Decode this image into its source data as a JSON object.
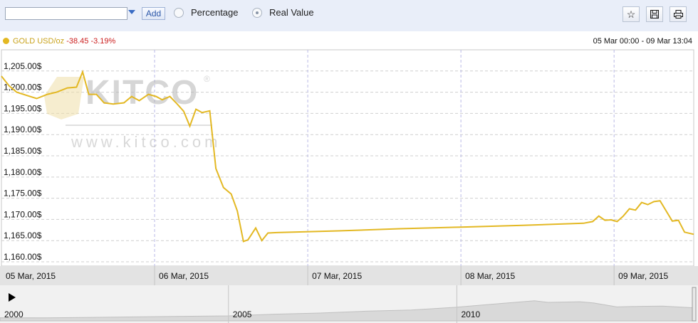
{
  "toolbar": {
    "add_label": "Add",
    "radio_percentage": "Percentage",
    "radio_real_value": "Real Value",
    "icons": [
      "star-icon",
      "save-icon",
      "print-icon"
    ]
  },
  "legend": {
    "series_name": "GOLD USD/oz",
    "change": "-38.45",
    "change_pct": "-3.19%",
    "color": "#e3b823"
  },
  "date_range": "05 Mar 00:00 - 09 Mar 13:04",
  "watermark": {
    "logo": "KITCO",
    "url": "www.kitco.com"
  },
  "chart_data": {
    "type": "line",
    "series": [
      {
        "name": "GOLD USD/oz",
        "color": "#e3b823",
        "points": [
          [
            0.0,
            1203.8
          ],
          [
            0.05,
            1201.5
          ],
          [
            0.1,
            1200.0
          ],
          [
            0.17,
            1199.2
          ],
          [
            0.23,
            1198.5
          ],
          [
            0.3,
            1199.5
          ],
          [
            0.36,
            1200.0
          ],
          [
            0.43,
            1201.0
          ],
          [
            0.49,
            1201.2
          ],
          [
            0.53,
            1204.8
          ],
          [
            0.57,
            1199.5
          ],
          [
            0.62,
            1199.5
          ],
          [
            0.67,
            1197.5
          ],
          [
            0.73,
            1197.2
          ],
          [
            0.8,
            1197.5
          ],
          [
            0.85,
            1199.0
          ],
          [
            0.9,
            1198.0
          ],
          [
            0.96,
            1199.5
          ],
          [
            1.01,
            1199.0
          ],
          [
            1.05,
            1198.2
          ],
          [
            1.1,
            1199.0
          ],
          [
            1.14,
            1197.5
          ],
          [
            1.19,
            1195.5
          ],
          [
            1.23,
            1192.0
          ],
          [
            1.27,
            1196.0
          ],
          [
            1.31,
            1195.2
          ],
          [
            1.36,
            1195.6
          ],
          [
            1.4,
            1182.0
          ],
          [
            1.45,
            1177.5
          ],
          [
            1.5,
            1176.0
          ],
          [
            1.54,
            1172.0
          ],
          [
            1.58,
            1164.8
          ],
          [
            1.61,
            1165.2
          ],
          [
            1.66,
            1168.0
          ],
          [
            1.7,
            1165.0
          ],
          [
            1.74,
            1166.8
          ],
          [
            1.8,
            1166.9
          ],
          [
            2.2,
            1167.3
          ],
          [
            2.6,
            1167.8
          ],
          [
            3.0,
            1168.2
          ],
          [
            3.4,
            1168.6
          ],
          [
            3.8,
            1169.1
          ],
          [
            3.86,
            1169.5
          ],
          [
            3.9,
            1170.8
          ],
          [
            3.94,
            1169.8
          ],
          [
            3.98,
            1169.9
          ],
          [
            4.02,
            1169.5
          ],
          [
            4.06,
            1170.8
          ],
          [
            4.1,
            1172.5
          ],
          [
            4.14,
            1172.2
          ],
          [
            4.18,
            1174.0
          ],
          [
            4.22,
            1173.5
          ],
          [
            4.26,
            1174.2
          ],
          [
            4.3,
            1174.4
          ],
          [
            4.34,
            1172.0
          ],
          [
            4.38,
            1169.6
          ],
          [
            4.42,
            1169.8
          ],
          [
            4.46,
            1167.0
          ],
          [
            4.52,
            1166.5
          ]
        ]
      }
    ],
    "x_ticks": [
      {
        "pos": 0,
        "label": "05 Mar, 2015"
      },
      {
        "pos": 1,
        "label": "06 Mar, 2015"
      },
      {
        "pos": 2,
        "label": "07 Mar, 2015"
      },
      {
        "pos": 3,
        "label": "08 Mar, 2015"
      },
      {
        "pos": 4,
        "label": "09 Mar, 2015"
      }
    ],
    "xlim": [
      0,
      4.52
    ],
    "y_ticks": [
      1160,
      1165,
      1170,
      1175,
      1180,
      1185,
      1190,
      1195,
      1200,
      1205
    ],
    "y_tick_labels": [
      "1,160.00$",
      "1,165.00$",
      "1,170.00$",
      "1,175.00$",
      "1,180.00$",
      "1,185.00$",
      "1,190.00$",
      "1,195.00$",
      "1,200.00$",
      "1,205.00$"
    ],
    "ylim": [
      1159,
      1210
    ],
    "grid": true,
    "navigator": {
      "year_labels": [
        "2000",
        "2005",
        "2010"
      ],
      "year_positions": [
        2000,
        2005,
        2010
      ],
      "xlim": [
        2000,
        2015.2
      ],
      "history": [
        [
          2000,
          280
        ],
        [
          2001,
          275
        ],
        [
          2002,
          310
        ],
        [
          2003,
          360
        ],
        [
          2004,
          410
        ],
        [
          2005,
          445
        ],
        [
          2006,
          600
        ],
        [
          2007,
          700
        ],
        [
          2008,
          870
        ],
        [
          2009,
          970
        ],
        [
          2010,
          1225
        ],
        [
          2011,
          1570
        ],
        [
          2011.7,
          1800
        ],
        [
          2012,
          1660
        ],
        [
          2012.7,
          1720
        ],
        [
          2013,
          1600
        ],
        [
          2013.5,
          1250
        ],
        [
          2014,
          1300
        ],
        [
          2014.5,
          1320
        ],
        [
          2015,
          1210
        ],
        [
          2015.2,
          1165
        ]
      ]
    }
  }
}
